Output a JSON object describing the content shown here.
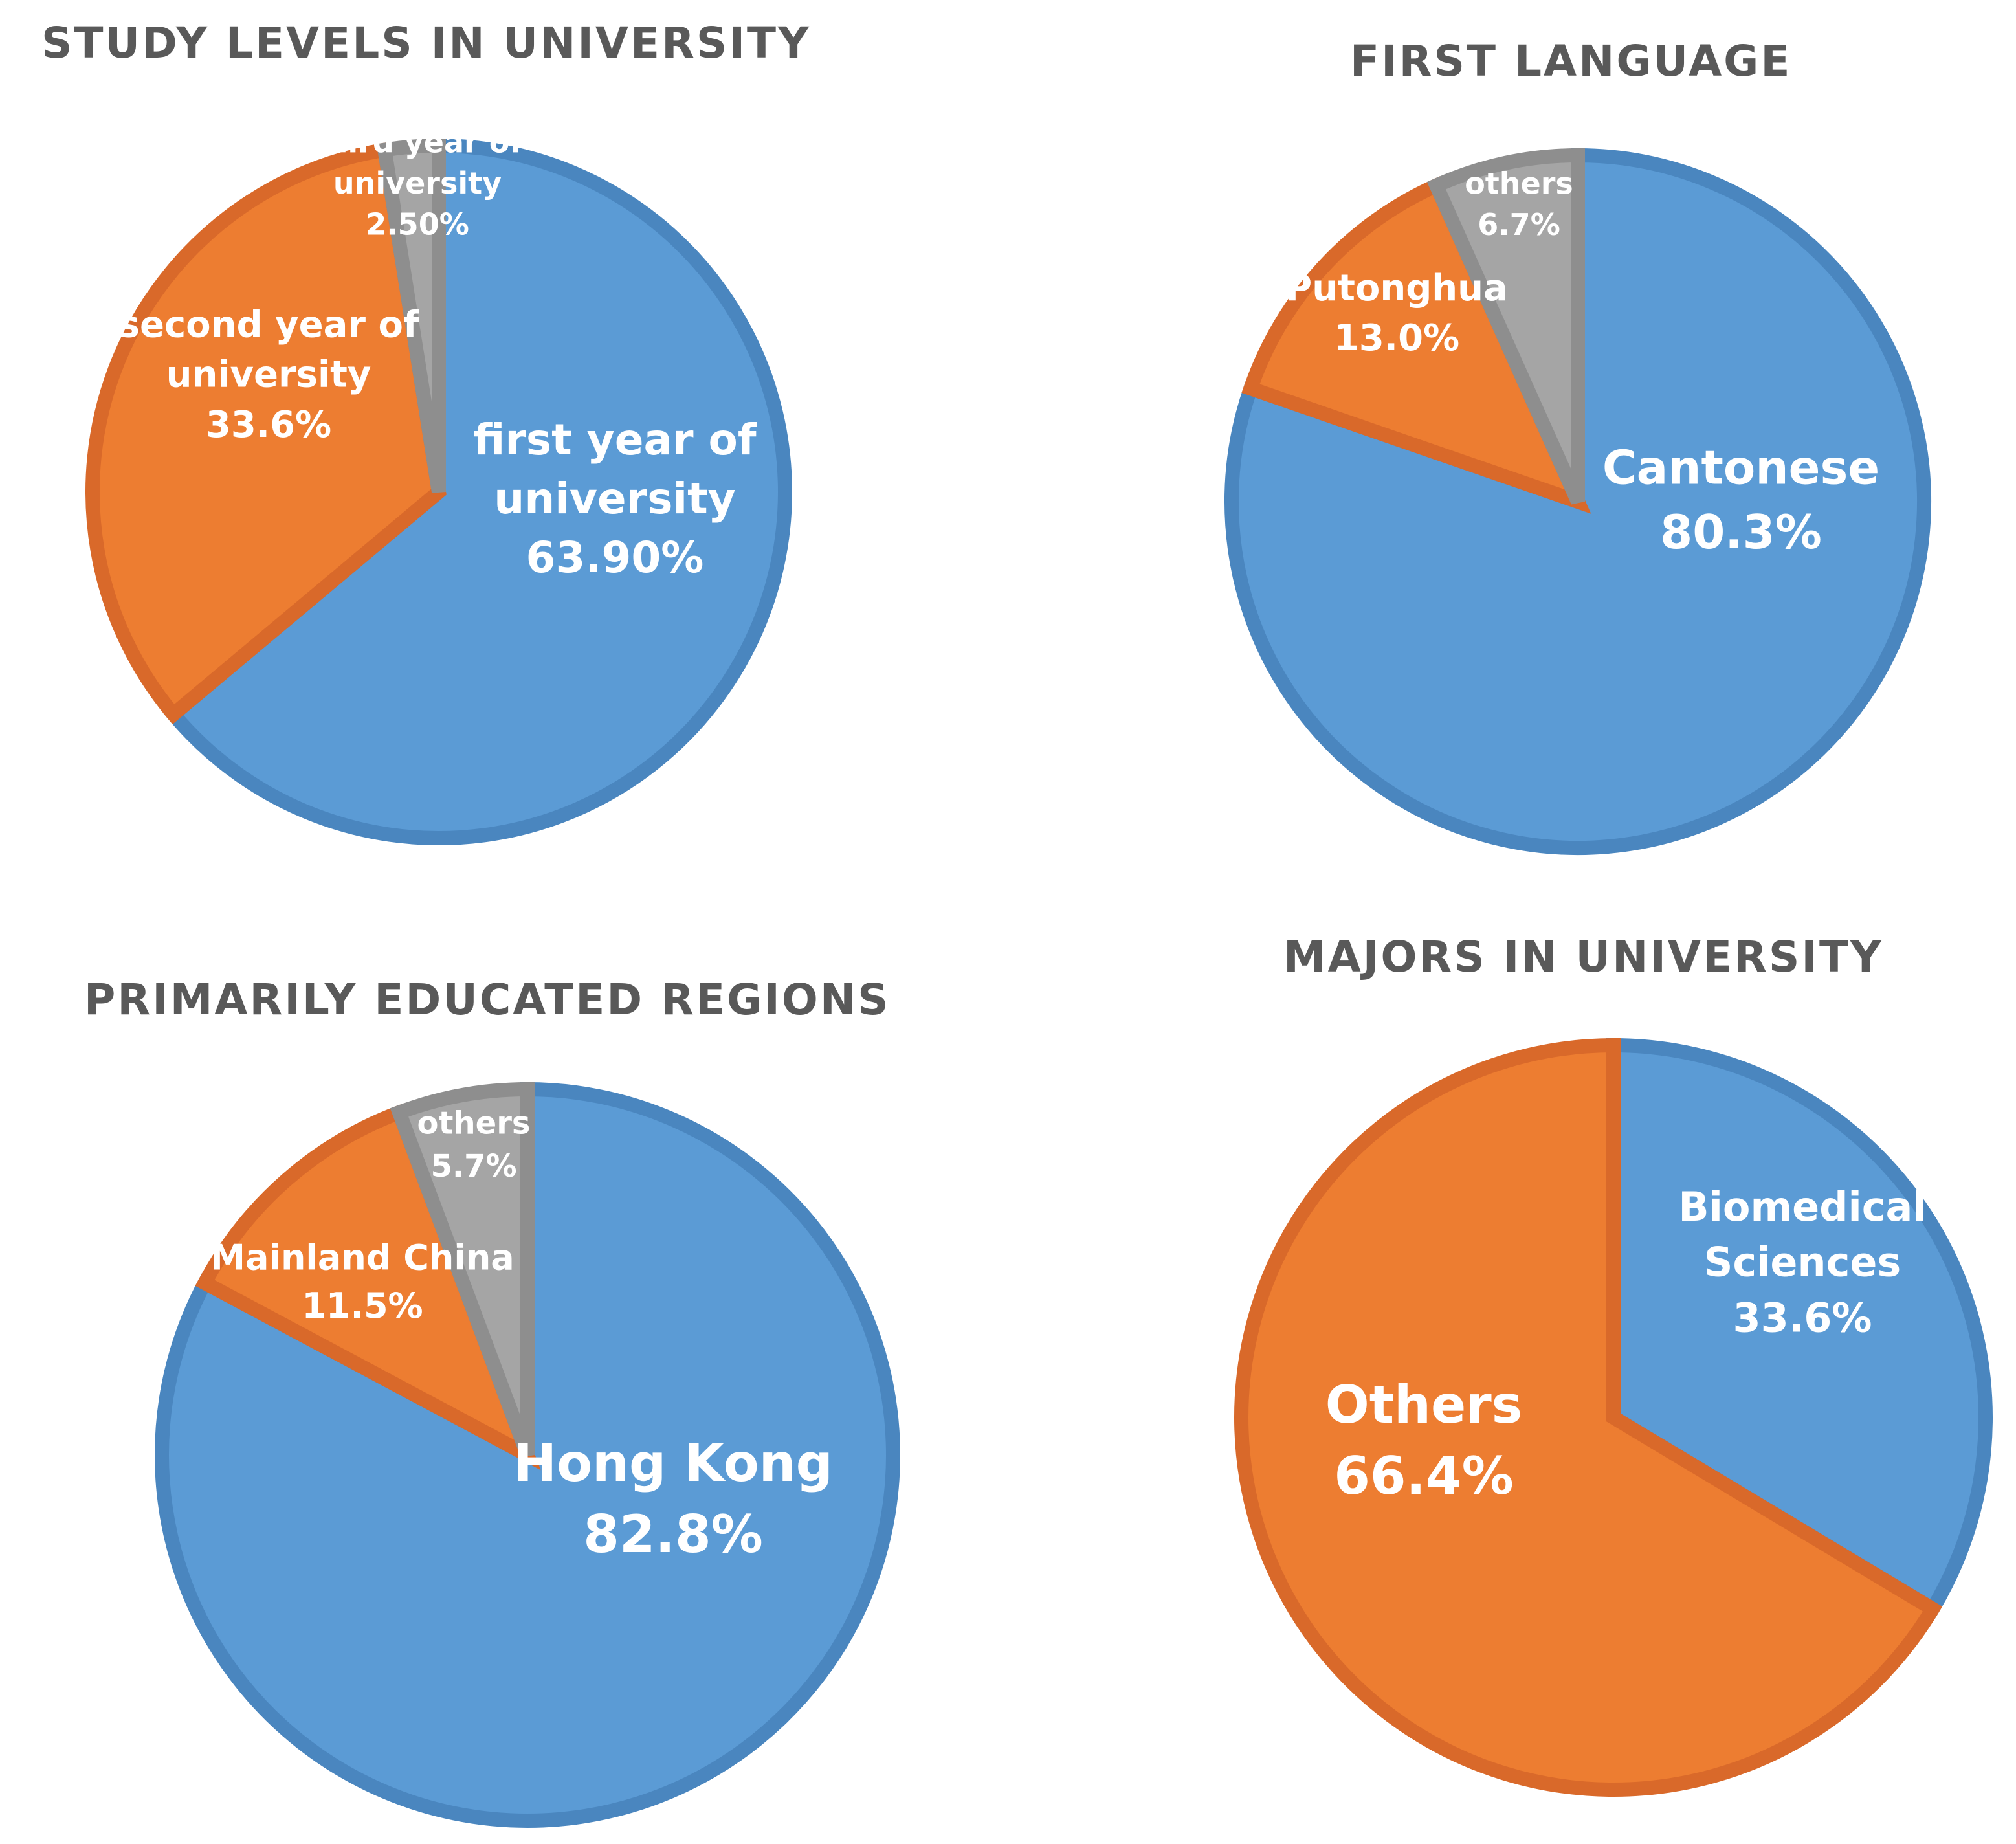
{
  "chart_data": [
    {
      "type": "pie",
      "title": "STUDY LEVELS IN UNIVERSITY",
      "unit": "%",
      "slices": [
        {
          "label_lines": [
            "first year of",
            "university"
          ],
          "value_text": "63.90%",
          "value": 63.9,
          "color": "#5B9BD5",
          "stroke": "#4A86BF"
        },
        {
          "label_lines": [
            "second year of",
            "university"
          ],
          "value_text": "33.6%",
          "value": 33.6,
          "color": "#ED7D31",
          "stroke": "#D9692A"
        },
        {
          "label_lines": [
            "third year of",
            "university"
          ],
          "value_text": "2.50%",
          "value": 2.5,
          "color": "#A5A5A5",
          "stroke": "#8E8E8E"
        }
      ]
    },
    {
      "type": "pie",
      "title": "FIRST LANGUAGE",
      "unit": "%",
      "slices": [
        {
          "label_lines": [
            "Cantonese"
          ],
          "value_text": "80.3%",
          "value": 80.3,
          "color": "#5B9BD5",
          "stroke": "#4A86BF"
        },
        {
          "label_lines": [
            "Putonghua"
          ],
          "value_text": "13.0%",
          "value": 13.0,
          "color": "#ED7D31",
          "stroke": "#D9692A"
        },
        {
          "label_lines": [
            "others"
          ],
          "value_text": "6.7%",
          "value": 6.7,
          "color": "#A5A5A5",
          "stroke": "#8E8E8E"
        }
      ]
    },
    {
      "type": "pie",
      "title": "PRIMARILY EDUCATED REGIONS",
      "unit": "%",
      "slices": [
        {
          "label_lines": [
            "Hong Kong"
          ],
          "value_text": "82.8%",
          "value": 82.8,
          "color": "#5B9BD5",
          "stroke": "#4A86BF"
        },
        {
          "label_lines": [
            "Mainland China"
          ],
          "value_text": "11.5%",
          "value": 11.5,
          "color": "#ED7D31",
          "stroke": "#D9692A"
        },
        {
          "label_lines": [
            "others"
          ],
          "value_text": "5.7%",
          "value": 5.7,
          "color": "#A5A5A5",
          "stroke": "#8E8E8E"
        }
      ]
    },
    {
      "type": "pie",
      "title": "MAJORS IN UNIVERSITY",
      "unit": "%",
      "slices": [
        {
          "label_lines": [
            "Biomedical",
            "Sciences"
          ],
          "value_text": "33.6%",
          "value": 33.6,
          "color": "#5B9BD5",
          "stroke": "#4A86BF"
        },
        {
          "label_lines": [
            "Others"
          ],
          "value_text": "66.4%",
          "value": 66.4,
          "color": "#ED7D31",
          "stroke": "#D9692A"
        }
      ]
    }
  ]
}
